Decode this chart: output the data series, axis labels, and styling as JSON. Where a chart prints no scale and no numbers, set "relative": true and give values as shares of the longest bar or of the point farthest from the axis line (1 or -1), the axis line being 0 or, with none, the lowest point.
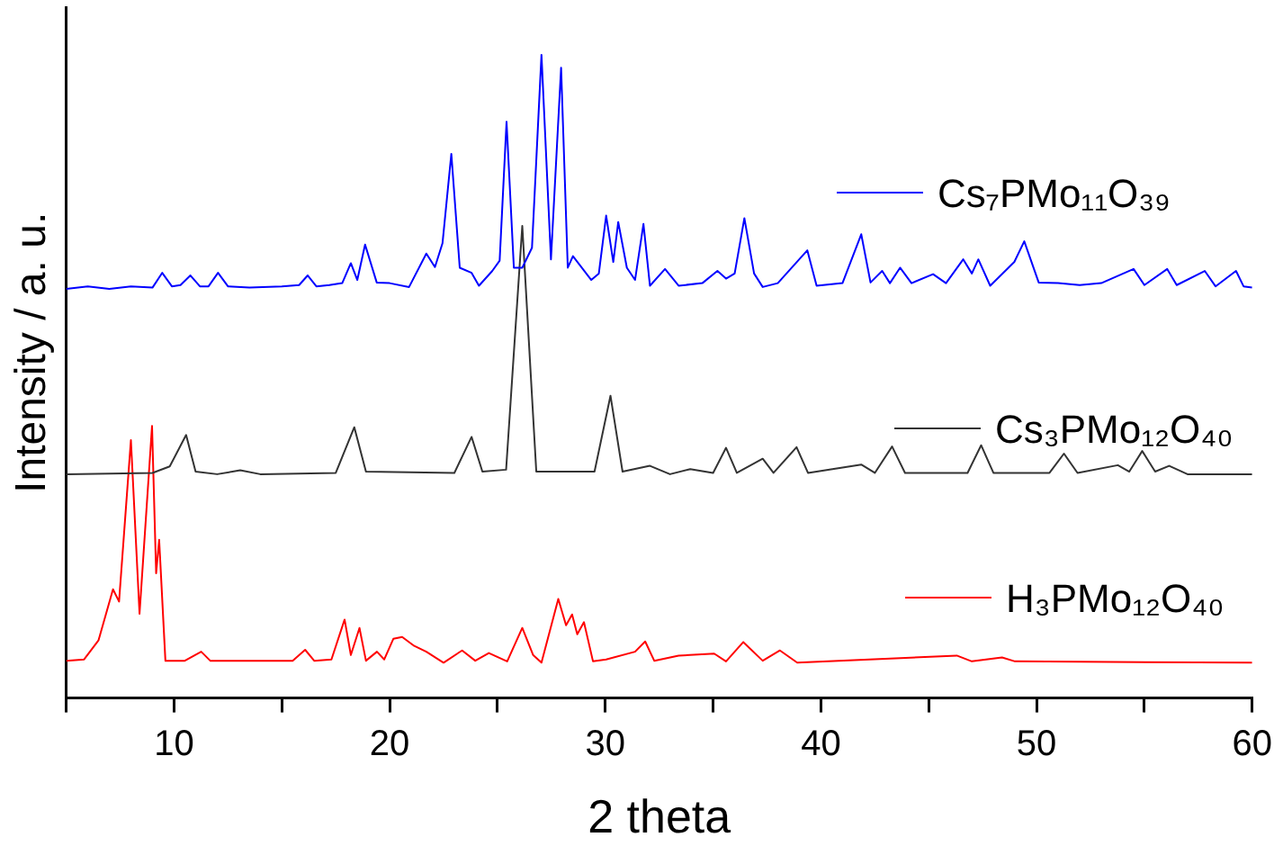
{
  "chart_data": {
    "type": "line",
    "xlabel": "2 theta",
    "ylabel": "Intensity / a. u.",
    "relative": true,
    "xlim": [
      5,
      60
    ],
    "xticks": [
      {
        "value": 5,
        "label": null
      },
      10,
      {
        "value": 15,
        "label": null
      },
      20,
      {
        "value": 25,
        "label": null
      },
      30,
      {
        "value": 35,
        "label": null
      },
      40,
      {
        "value": 45,
        "label": null
      },
      50,
      {
        "value": 55,
        "label": null
      },
      60
    ],
    "marker": "none",
    "grid": false,
    "legend": "right",
    "series": [
      {
        "name": "Cs₇PMo₁₁O₃₉",
        "color": "#0000ff",
        "x": [
          5,
          6,
          7,
          8,
          9,
          9.45,
          9.9,
          10.3,
          10.76,
          11.2,
          11.6,
          12.04,
          12.5,
          13.5,
          15,
          15.8,
          16.2,
          16.6,
          17.2,
          17.8,
          18.2,
          18.5,
          18.86,
          19.4,
          20,
          20.9,
          21.7,
          22.1,
          22.45,
          22.86,
          23.25,
          23.8,
          24.14,
          24.76,
          25.1,
          25.42,
          25.76,
          26.15,
          26.6,
          27.04,
          27.48,
          27.95,
          28.26,
          28.5,
          29.35,
          29.7,
          30.04,
          30.37,
          30.6,
          31.0,
          31.38,
          31.77,
          32.07,
          32.77,
          33.4,
          34.5,
          35.2,
          35.6,
          36.0,
          36.45,
          36.9,
          37.3,
          38,
          39.37,
          39.8,
          41,
          41.87,
          42.3,
          42.84,
          43.2,
          43.67,
          44.2,
          45.2,
          45.8,
          46.6,
          47.0,
          47.3,
          47.85,
          48.97,
          49.43,
          50.1,
          51,
          52,
          53,
          54.5,
          55,
          56.06,
          56.5,
          57.8,
          58.3,
          59.25,
          59.6,
          60
        ],
        "values": [
          0.636,
          0.64,
          0.636,
          0.64,
          0.638,
          0.661,
          0.64,
          0.642,
          0.657,
          0.64,
          0.64,
          0.661,
          0.64,
          0.638,
          0.64,
          0.642,
          0.657,
          0.64,
          0.642,
          0.645,
          0.676,
          0.65,
          0.705,
          0.646,
          0.645,
          0.639,
          0.691,
          0.67,
          0.707,
          0.846,
          0.669,
          0.661,
          0.641,
          0.664,
          0.68,
          0.896,
          0.669,
          0.669,
          0.7,
          1,
          0.682,
          0.98,
          0.669,
          0.687,
          0.65,
          0.66,
          0.75,
          0.678,
          0.74,
          0.669,
          0.65,
          0.737,
          0.641,
          0.667,
          0.641,
          0.645,
          0.664,
          0.652,
          0.66,
          0.746,
          0.66,
          0.639,
          0.645,
          0.696,
          0.641,
          0.645,
          0.721,
          0.646,
          0.664,
          0.645,
          0.669,
          0.645,
          0.659,
          0.645,
          0.682,
          0.66,
          0.682,
          0.641,
          0.678,
          0.71,
          0.646,
          0.645,
          0.642,
          0.645,
          0.667,
          0.642,
          0.667,
          0.642,
          0.664,
          0.64,
          0.664,
          0.64,
          0.638
        ]
      },
      {
        "name": "Cs₃PMo₁₂O₄₀",
        "color": "#333333",
        "x": [
          5,
          9,
          9.8,
          10.56,
          11,
          12,
          13.07,
          14,
          17.5,
          18.36,
          18.9,
          23,
          23.8,
          24.3,
          25.4,
          26.15,
          26.8,
          29.5,
          30.24,
          30.8,
          32.07,
          33,
          33.94,
          35,
          35.6,
          36.1,
          37.3,
          37.8,
          38.87,
          39.4,
          41.87,
          42.5,
          43.3,
          43.9,
          46.8,
          47.43,
          48,
          50.6,
          51.27,
          51.9,
          53.77,
          54.3,
          54.9,
          55.5,
          56.15,
          57,
          60
        ],
        "values": [
          0.348,
          0.35,
          0.36,
          0.409,
          0.352,
          0.348,
          0.354,
          0.348,
          0.35,
          0.421,
          0.352,
          0.35,
          0.406,
          0.352,
          0.355,
          0.734,
          0.352,
          0.352,
          0.47,
          0.352,
          0.361,
          0.348,
          0.356,
          0.35,
          0.389,
          0.35,
          0.372,
          0.35,
          0.39,
          0.35,
          0.363,
          0.35,
          0.391,
          0.35,
          0.35,
          0.393,
          0.35,
          0.35,
          0.38,
          0.35,
          0.362,
          0.352,
          0.384,
          0.352,
          0.361,
          0.348,
          0.348
        ]
      },
      {
        "name": "H₃PMo₁₂O₄₀",
        "color": "#ff0000",
        "x": [
          5,
          5.83,
          6.5,
          7.17,
          7.45,
          8.0,
          8.4,
          8.98,
          9.17,
          9.31,
          9.6,
          10.5,
          11.26,
          11.68,
          15.5,
          16.08,
          16.5,
          17.3,
          17.91,
          18.2,
          18.6,
          18.9,
          19.41,
          19.75,
          20.17,
          20.58,
          21.14,
          21.7,
          22.5,
          23.36,
          23.97,
          24.6,
          25.45,
          26.15,
          26.65,
          27.04,
          27.82,
          28.18,
          28.46,
          28.7,
          29.01,
          29.43,
          30.04,
          31.38,
          31.85,
          32.27,
          33.4,
          35.05,
          35.6,
          36.4,
          37.3,
          38.1,
          38.9,
          46.3,
          47,
          48.4,
          49,
          60
        ],
        "values": [
          0.058,
          0.06,
          0.09,
          0.169,
          0.15,
          0.401,
          0.131,
          0.423,
          0.194,
          0.246,
          0.058,
          0.058,
          0.072,
          0.058,
          0.058,
          0.075,
          0.058,
          0.06,
          0.122,
          0.067,
          0.109,
          0.058,
          0.072,
          0.06,
          0.092,
          0.095,
          0.081,
          0.072,
          0.055,
          0.074,
          0.058,
          0.07,
          0.057,
          0.109,
          0.067,
          0.055,
          0.154,
          0.113,
          0.13,
          0.099,
          0.118,
          0.057,
          0.06,
          0.072,
          0.088,
          0.058,
          0.066,
          0.069,
          0.057,
          0.087,
          0.058,
          0.074,
          0.055,
          0.066,
          0.057,
          0.063,
          0.057,
          0.055
        ]
      }
    ]
  }
}
